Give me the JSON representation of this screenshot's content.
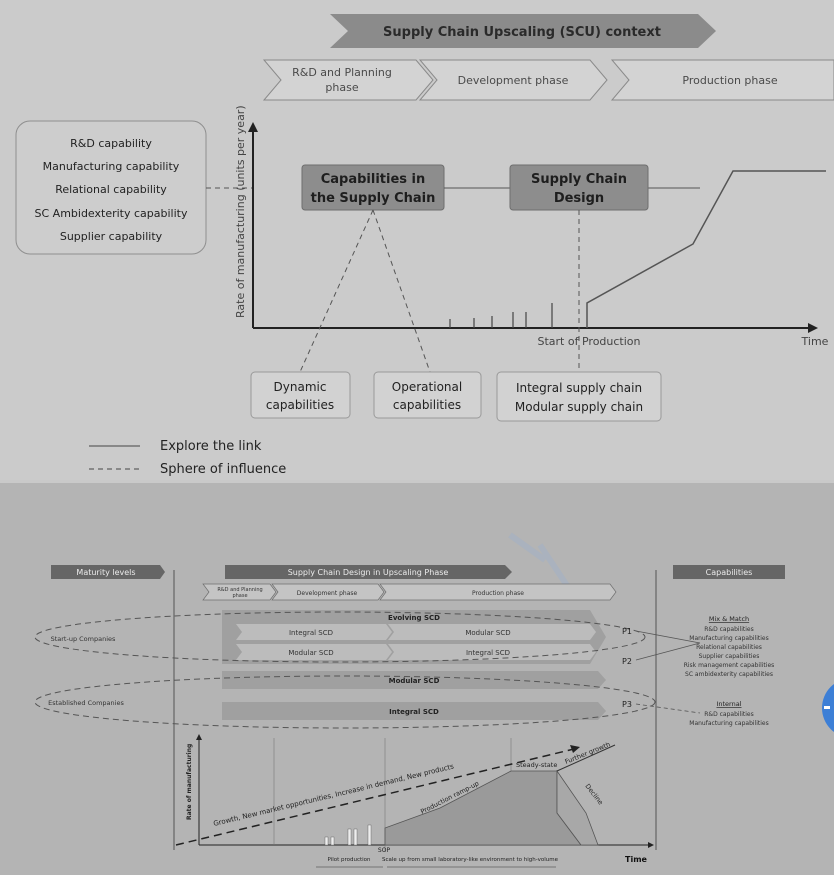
{
  "top": {
    "banner": "Supply Chain Upscaling (SCU) context",
    "phase1_l1": "R&D and Planning",
    "phase1_l2": "phase",
    "phase2": "Development phase",
    "phase3": "Production phase",
    "capabilities": [
      "R&D capability",
      "Manufacturing capability",
      "Relational capability",
      "SC Ambidexterity capability",
      "Supplier capability"
    ],
    "y_axis": "Rate of manufacturing (units per year)",
    "box_cap_l1": "Capabilities in",
    "box_cap_l2": "the Supply Chain",
    "box_scd_l1": "Supply Chain",
    "box_scd_l2": "Design",
    "sop": "Start of Production",
    "time": "Time",
    "dyn_l1": "Dynamic",
    "dyn_l2": "capabilities",
    "op_l1": "Operational",
    "op_l2": "capabilities",
    "integral_sc": "Integral supply chain",
    "modular_sc": "Modular supply chain",
    "legend_solid": "Explore the link",
    "legend_dashed": "Sphere of influence"
  },
  "bottom": {
    "maturity": "Maturity levels",
    "banner": "Supply Chain Design in Upscaling Phase",
    "capabilities": "Capabilities",
    "phase1_l1": "R&D and Planning",
    "phase1_l2": "phase",
    "phase2": "Development phase",
    "phase3": "Production phase",
    "evolving": "Evolving SCD",
    "integral_scd_a": "Integral SCD",
    "modular_scd_a": "Modular SCD",
    "modular_scd_b": "Modular SCD",
    "integral_scd_b": "Integral SCD",
    "modular_full": "Modular SCD",
    "integral_full": "Integral SCD",
    "p1": "P1",
    "p2": "P2",
    "p3": "P3",
    "startup": "Start-up Companies",
    "established": "Established Companies",
    "mix_title": "Mix & Match",
    "mix_items": [
      "R&D capabilities",
      "Manufacturing capabilities",
      "Relational capabilities",
      "Supplier capabilities",
      "Risk management capabilities",
      "SC ambidexterity capabilities"
    ],
    "internal_title": "Internal",
    "internal_items": [
      "R&D capabilities",
      "Manufacturing capabilities"
    ],
    "y_axis": "Rate of manufacturing",
    "growth": "Growth, New market opportunities, Increase in demand, New products",
    "rampup": "Production ramp-up",
    "steady": "Steady-state",
    "further": "Further growth",
    "decline": "Decline",
    "sop": "SOP",
    "pilot": "Pilot production",
    "scaleup": "Scale up from small laboratory-like environment to high-volume",
    "time": "Time"
  }
}
